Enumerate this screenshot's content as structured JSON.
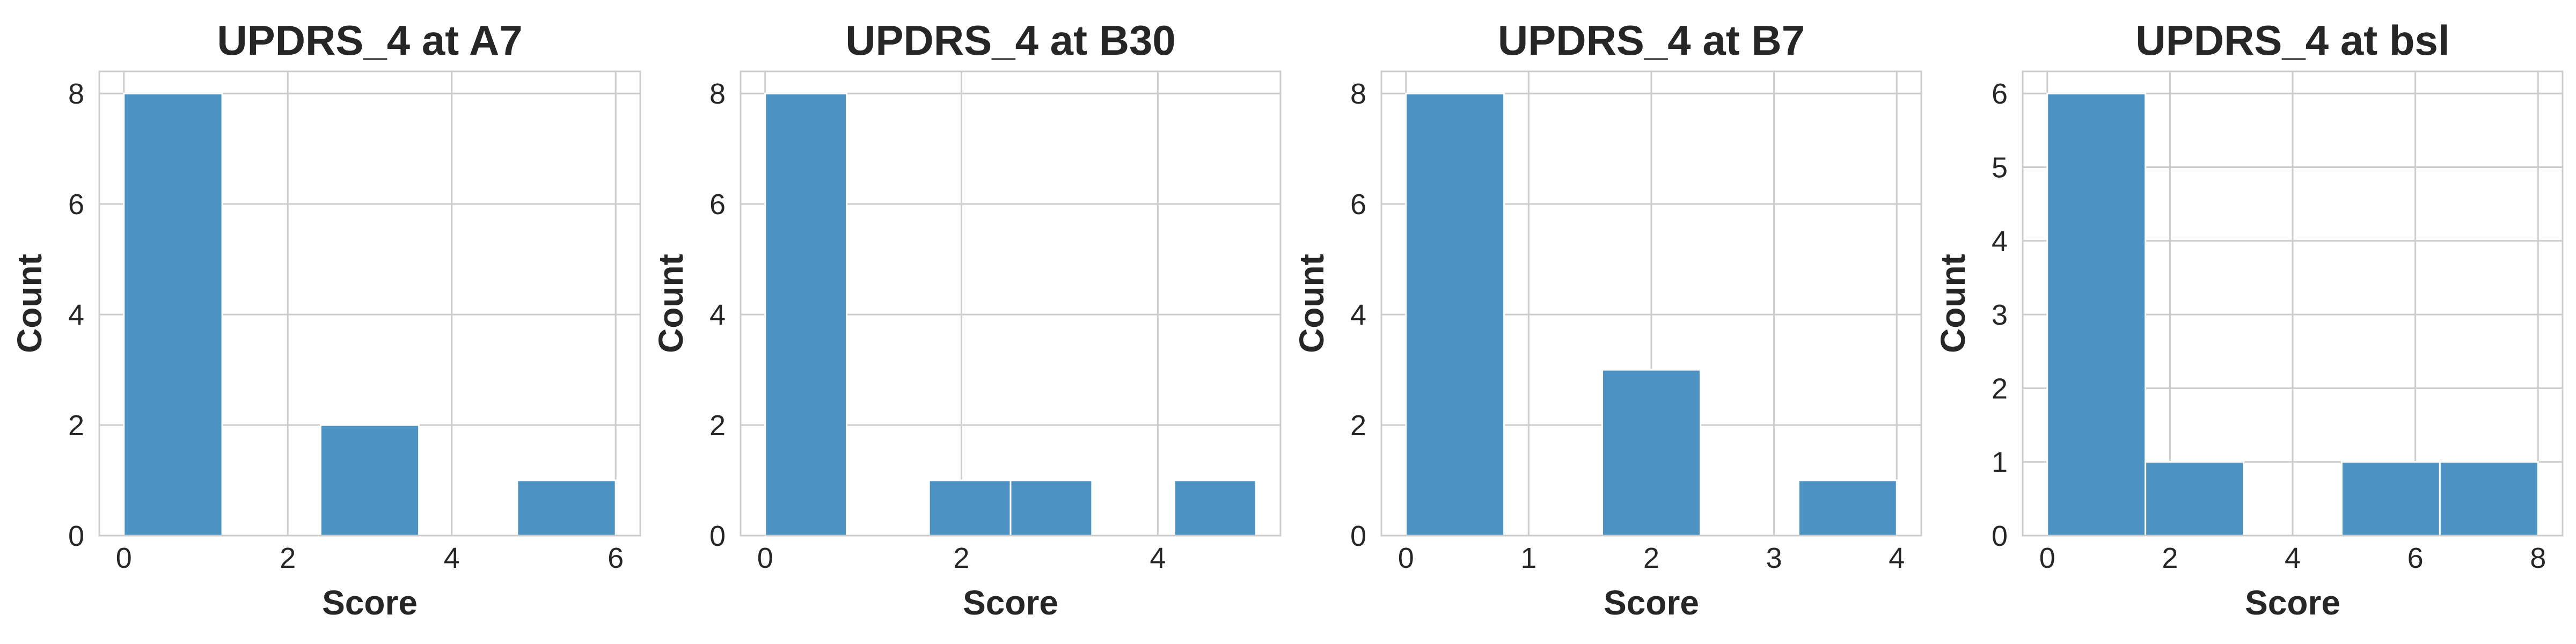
{
  "chart_data": [
    {
      "type": "bar",
      "title": "UPDRS_4 at A7",
      "xlabel": "Score",
      "ylabel": "Count",
      "xlim": [
        -0.3,
        6.3
      ],
      "ylim": [
        0,
        8.4
      ],
      "xticks": [
        0,
        2,
        4,
        6
      ],
      "yticks": [
        0,
        2,
        4,
        6,
        8
      ],
      "grid": true,
      "bars": [
        {
          "x0": 0.0,
          "x1": 1.2,
          "count": 8
        },
        {
          "x0": 1.2,
          "x1": 2.4,
          "count": 0
        },
        {
          "x0": 2.4,
          "x1": 3.6,
          "count": 2
        },
        {
          "x0": 3.6,
          "x1": 4.8,
          "count": 0
        },
        {
          "x0": 4.8,
          "x1": 6.0,
          "count": 1
        }
      ]
    },
    {
      "type": "bar",
      "title": "UPDRS_4 at B30",
      "xlabel": "Score",
      "ylabel": "Count",
      "xlim": [
        -0.25,
        5.25
      ],
      "ylim": [
        0,
        8.4
      ],
      "xticks": [
        0,
        2,
        4
      ],
      "yticks": [
        0,
        2,
        4,
        6,
        8
      ],
      "grid": true,
      "bars": [
        {
          "x0": 0.0,
          "x1": 0.83,
          "count": 8
        },
        {
          "x0": 0.83,
          "x1": 1.67,
          "count": 0
        },
        {
          "x0": 1.67,
          "x1": 2.5,
          "count": 1
        },
        {
          "x0": 2.5,
          "x1": 3.33,
          "count": 1
        },
        {
          "x0": 3.33,
          "x1": 4.17,
          "count": 0
        },
        {
          "x0": 4.17,
          "x1": 5.0,
          "count": 1
        }
      ]
    },
    {
      "type": "bar",
      "title": "UPDRS_4 at B7",
      "xlabel": "Score",
      "ylabel": "Count",
      "xlim": [
        -0.2,
        4.2
      ],
      "ylim": [
        0,
        8.4
      ],
      "xticks": [
        0,
        1,
        2,
        3,
        4
      ],
      "yticks": [
        0,
        2,
        4,
        6,
        8
      ],
      "grid": true,
      "bars": [
        {
          "x0": 0.0,
          "x1": 0.8,
          "count": 8
        },
        {
          "x0": 0.8,
          "x1": 1.6,
          "count": 0
        },
        {
          "x0": 1.6,
          "x1": 2.4,
          "count": 3
        },
        {
          "x0": 2.4,
          "x1": 3.2,
          "count": 0
        },
        {
          "x0": 3.2,
          "x1": 4.0,
          "count": 1
        }
      ]
    },
    {
      "type": "bar",
      "title": "UPDRS_4 at bsl",
      "xlabel": "Score",
      "ylabel": "Count",
      "xlim": [
        -0.4,
        8.4
      ],
      "ylim": [
        0,
        6.3
      ],
      "xticks": [
        0,
        2,
        4,
        6,
        8
      ],
      "yticks": [
        0,
        1,
        2,
        3,
        4,
        5,
        6
      ],
      "grid": true,
      "bars": [
        {
          "x0": 0.0,
          "x1": 1.6,
          "count": 6
        },
        {
          "x0": 1.6,
          "x1": 3.2,
          "count": 1
        },
        {
          "x0": 3.2,
          "x1": 4.8,
          "count": 0
        },
        {
          "x0": 4.8,
          "x1": 6.4,
          "count": 1
        },
        {
          "x0": 6.4,
          "x1": 8.0,
          "count": 1
        }
      ]
    }
  ],
  "colors": {
    "bar": "#4c92c3",
    "grid": "#cccccc",
    "text": "#262626"
  }
}
